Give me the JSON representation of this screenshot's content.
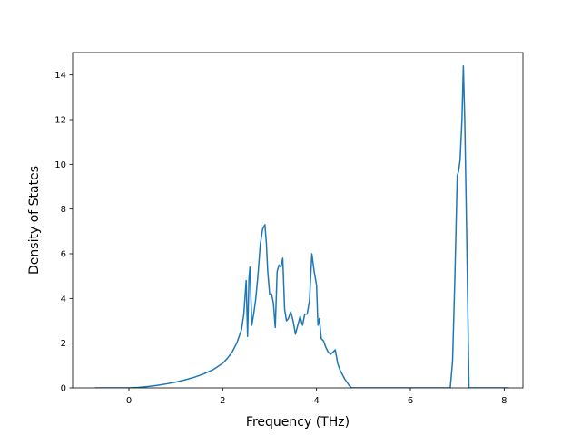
{
  "chart_data": {
    "type": "line",
    "title": "",
    "xlabel": "Frequency (THz)",
    "ylabel": "Density of States",
    "xlim": [
      -1.2,
      8.4
    ],
    "ylim": [
      0,
      15
    ],
    "x_ticks": [
      0,
      2,
      4,
      6,
      8
    ],
    "y_ticks": [
      0,
      2,
      4,
      6,
      8,
      10,
      12,
      14
    ],
    "x_tick_labels": [
      "0",
      "2",
      "4",
      "6",
      "8"
    ],
    "y_tick_labels": [
      "0",
      "2",
      "4",
      "6",
      "8",
      "10",
      "12",
      "14"
    ],
    "grid": false,
    "legend": null,
    "line_color": "#1f77b4",
    "series": [
      {
        "x": [
          -0.72,
          -0.6,
          -0.4,
          -0.2,
          0.0,
          0.2,
          0.4,
          0.6,
          0.8,
          1.0,
          1.2,
          1.4,
          1.6,
          1.8,
          2.0,
          2.1,
          2.2,
          2.3,
          2.4,
          2.45,
          2.5,
          2.53,
          2.56,
          2.58,
          2.62,
          2.66,
          2.7,
          2.75,
          2.8,
          2.85,
          2.9,
          2.93,
          2.96,
          3.0,
          3.04,
          3.08,
          3.12,
          3.16,
          3.2,
          3.24,
          3.28,
          3.32,
          3.36,
          3.4,
          3.45,
          3.5,
          3.55,
          3.6,
          3.65,
          3.7,
          3.75,
          3.8,
          3.85,
          3.9,
          3.95,
          4.0,
          4.03,
          4.06,
          4.1,
          4.15,
          4.2,
          4.25,
          4.3,
          4.35,
          4.4,
          4.45,
          4.5,
          4.6,
          4.7,
          4.75,
          5.0,
          5.5,
          6.0,
          6.5,
          6.85,
          6.9,
          6.95,
          7.0,
          7.03,
          7.06,
          7.1,
          7.13,
          7.16,
          7.2,
          7.25,
          7.5,
          8.0,
          8.1
        ],
        "y": [
          0,
          0,
          0,
          0,
          0,
          0.02,
          0.06,
          0.11,
          0.18,
          0.26,
          0.36,
          0.48,
          0.63,
          0.82,
          1.1,
          1.32,
          1.6,
          2.0,
          2.6,
          3.3,
          4.8,
          2.3,
          4.9,
          5.4,
          2.8,
          3.3,
          3.9,
          5.0,
          6.4,
          7.1,
          7.3,
          6.5,
          5.2,
          4.2,
          4.2,
          3.8,
          2.7,
          5.2,
          5.5,
          5.4,
          5.8,
          3.5,
          3.0,
          3.1,
          3.4,
          3.0,
          2.4,
          2.8,
          3.2,
          2.8,
          3.3,
          3.3,
          3.9,
          6.0,
          5.2,
          4.6,
          2.8,
          3.1,
          2.2,
          2.1,
          1.8,
          1.6,
          1.5,
          1.6,
          1.7,
          1.1,
          0.8,
          0.4,
          0.1,
          0,
          0,
          0,
          0,
          0,
          0,
          1.2,
          5.0,
          9.5,
          9.7,
          10.2,
          12.0,
          14.4,
          12.0,
          7.0,
          0,
          0,
          0,
          0
        ]
      }
    ]
  }
}
